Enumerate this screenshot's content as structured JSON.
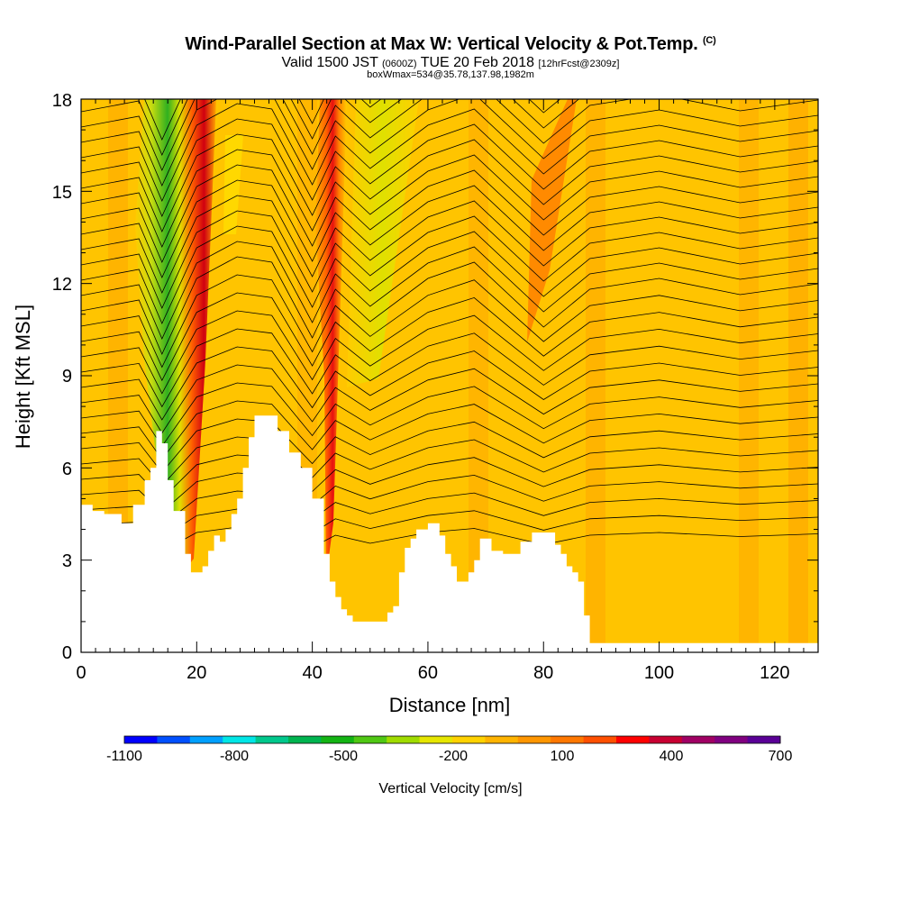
{
  "title": {
    "main": "Wind-Parallel Section at Max W: Vertical Velocity & Pot.Temp.",
    "copyright": "(C)",
    "valid_prefix": "Valid 1500 JST",
    "valid_zulu": "(0600Z)",
    "valid_date": "TUE 20 Feb 2018",
    "forecast": "[12hrFcst@2309z]",
    "box_info": "boxWmax=534@35.78,137.98,1982m"
  },
  "chart_data": {
    "type": "heatmap",
    "xlabel": "Distance [nm]",
    "ylabel": "Height [Kft MSL]",
    "xlim": [
      0,
      127.5
    ],
    "ylim": [
      0,
      18
    ],
    "x_ticks": [
      "0",
      "20",
      "40",
      "60",
      "80",
      "100",
      "120"
    ],
    "y_ticks": [
      "0",
      "3",
      "6",
      "9",
      "12",
      "15",
      "18"
    ],
    "colorbar": {
      "label": "Vertical Velocity [cm/s]",
      "tick_labels": [
        "-1100",
        "-800",
        "-500",
        "-200",
        "100",
        "400",
        "700"
      ],
      "levels": [
        -1100,
        700
      ],
      "colors": [
        "#0000ff",
        "#0050ff",
        "#00a0ff",
        "#00e6e6",
        "#00c88c",
        "#00b450",
        "#14b414",
        "#50c814",
        "#a0dc00",
        "#e6e600",
        "#ffd200",
        "#ffb400",
        "#ff9600",
        "#ff7800",
        "#ff5000",
        "#ff0000",
        "#c80032",
        "#a00064",
        "#800080",
        "#5a0096"
      ]
    },
    "terrain_kft": [
      [
        0,
        4.8
      ],
      [
        2,
        4.8
      ],
      [
        2,
        4.6
      ],
      [
        4,
        4.6
      ],
      [
        4,
        4.5
      ],
      [
        7,
        4.5
      ],
      [
        7,
        4.2
      ],
      [
        9,
        4.2
      ],
      [
        9,
        4.8
      ],
      [
        11,
        4.8
      ],
      [
        11,
        5.6
      ],
      [
        12,
        5.6
      ],
      [
        12,
        6
      ],
      [
        13,
        6
      ],
      [
        13,
        7.2
      ],
      [
        14,
        7.2
      ],
      [
        14,
        6.8
      ],
      [
        15,
        6.8
      ],
      [
        15,
        5.6
      ],
      [
        16,
        5.6
      ],
      [
        16,
        4.6
      ],
      [
        18,
        4.6
      ],
      [
        18,
        3.2
      ],
      [
        19,
        3.2
      ],
      [
        19,
        2.6
      ],
      [
        21,
        2.6
      ],
      [
        21,
        2.8
      ],
      [
        22,
        2.8
      ],
      [
        22,
        3.3
      ],
      [
        23,
        3.3
      ],
      [
        23,
        3.8
      ],
      [
        24,
        3.8
      ],
      [
        24,
        3.6
      ],
      [
        25,
        3.6
      ],
      [
        25,
        4
      ],
      [
        26,
        4
      ],
      [
        26,
        4.5
      ],
      [
        27,
        4.5
      ],
      [
        27,
        5
      ],
      [
        28,
        5
      ],
      [
        28,
        6
      ],
      [
        29,
        6
      ],
      [
        29,
        7
      ],
      [
        30,
        7
      ],
      [
        30,
        7.7
      ],
      [
        34,
        7.7
      ],
      [
        34,
        7.2
      ],
      [
        36,
        7.2
      ],
      [
        36,
        6.5
      ],
      [
        38,
        6.5
      ],
      [
        38,
        6
      ],
      [
        40,
        6
      ],
      [
        40,
        5
      ],
      [
        42,
        5
      ],
      [
        42,
        3.2
      ],
      [
        43,
        3.2
      ],
      [
        43,
        2.3
      ],
      [
        44,
        2.3
      ],
      [
        44,
        1.8
      ],
      [
        45,
        1.8
      ],
      [
        45,
        1.4
      ],
      [
        46,
        1.4
      ],
      [
        46,
        1.2
      ],
      [
        47,
        1.2
      ],
      [
        47,
        1
      ],
      [
        53,
        1
      ],
      [
        53,
        1.3
      ],
      [
        54,
        1.3
      ],
      [
        54,
        1.5
      ],
      [
        55,
        1.5
      ],
      [
        55,
        2.6
      ],
      [
        56,
        2.6
      ],
      [
        56,
        3.4
      ],
      [
        57,
        3.4
      ],
      [
        57,
        3.7
      ],
      [
        58,
        3.7
      ],
      [
        58,
        4
      ],
      [
        60,
        4
      ],
      [
        60,
        4.2
      ],
      [
        62,
        4.2
      ],
      [
        62,
        3.8
      ],
      [
        63,
        3.8
      ],
      [
        63,
        3.2
      ],
      [
        64,
        3.2
      ],
      [
        64,
        2.8
      ],
      [
        65,
        2.8
      ],
      [
        65,
        2.3
      ],
      [
        67,
        2.3
      ],
      [
        67,
        2.6
      ],
      [
        68,
        2.6
      ],
      [
        68,
        3
      ],
      [
        69,
        3
      ],
      [
        69,
        3.7
      ],
      [
        71,
        3.7
      ],
      [
        71,
        3.3
      ],
      [
        73,
        3.3
      ],
      [
        73,
        3.2
      ],
      [
        76,
        3.2
      ],
      [
        76,
        3.6
      ],
      [
        78,
        3.6
      ],
      [
        78,
        3.9
      ],
      [
        82,
        3.9
      ],
      [
        82,
        3.5
      ],
      [
        83,
        3.5
      ],
      [
        83,
        3.2
      ],
      [
        84,
        3.2
      ],
      [
        84,
        2.8
      ],
      [
        85,
        2.8
      ],
      [
        85,
        2.6
      ],
      [
        86,
        2.6
      ],
      [
        86,
        2.3
      ],
      [
        87,
        2.3
      ],
      [
        87,
        1.2
      ],
      [
        88,
        1.2
      ],
      [
        88,
        0.3
      ],
      [
        127.5,
        0.3
      ]
    ]
  }
}
